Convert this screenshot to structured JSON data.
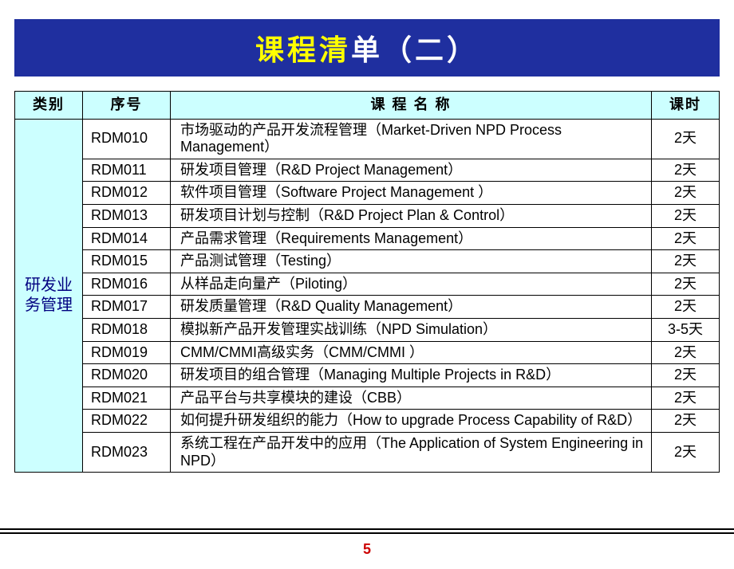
{
  "title": {
    "segA": "课程清",
    "segB": "单（二）"
  },
  "headers": {
    "cat": "类别",
    "code": "序号",
    "name": "课 程 名 称",
    "dur": "课时"
  },
  "category": "研发业\n务管理",
  "rows": [
    {
      "code": "RDM010",
      "name": "市场驱动的产品开发流程管理（Market-Driven NPD Process Management）",
      "dur": "2天"
    },
    {
      "code": "RDM011",
      "name": "研发项目管理（R&D Project Management）",
      "dur": "2天"
    },
    {
      "code": "RDM012",
      "name": "软件项目管理（Software Project Management ）",
      "dur": "2天"
    },
    {
      "code": "RDM013",
      "name": "研发项目计划与控制（R&D Project Plan & Control）",
      "dur": "2天"
    },
    {
      "code": "RDM014",
      "name": "产品需求管理（Requirements Management）",
      "dur": "2天"
    },
    {
      "code": "RDM015",
      "name": "产品测试管理（Testing）",
      "dur": "2天"
    },
    {
      "code": "RDM016",
      "name": "从样品走向量产（Piloting）",
      "dur": "2天"
    },
    {
      "code": "RDM017",
      "name": "研发质量管理（R&D Quality Management）",
      "dur": "2天"
    },
    {
      "code": "RDM018",
      "name": "模拟新产品开发管理实战训练（NPD Simulation）",
      "dur": "3-5天"
    },
    {
      "code": "RDM019",
      "name": "CMM/CMMI高级实务（CMM/CMMI ）",
      "dur": "2天"
    },
    {
      "code": "RDM020",
      "name": "研发项目的组合管理（Managing Multiple Projects in R&D）",
      "dur": "2天"
    },
    {
      "code": "RDM021",
      "name": "产品平台与共享模块的建设（CBB）",
      "dur": "2天"
    },
    {
      "code": "RDM022",
      "name": "如何提升研发组织的能力（How to upgrade Process Capability of R&D）",
      "dur": "2天"
    },
    {
      "code": "RDM023",
      "name": "系统工程在产品开发中的应用（The Application of System Engineering in NPD）",
      "dur": "2天"
    }
  ],
  "pageNumber": "5",
  "style": {
    "banner_bg": "#1f2f9f",
    "title_yellow": "#ffff00",
    "title_white": "#ffffff",
    "header_bg": "#ccffff",
    "border_color": "#000000",
    "cat_text_color": "#000080",
    "page_num_color": "#cc0000",
    "title_fontsize": 36,
    "cell_fontsize": 18
  }
}
